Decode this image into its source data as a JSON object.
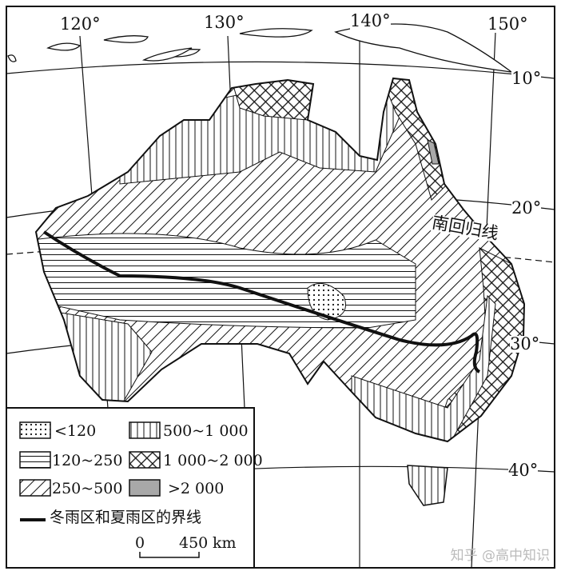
{
  "map": {
    "longitudes": [
      "120°",
      "130°",
      "140°",
      "150°"
    ],
    "latitudes": [
      "10°",
      "20°",
      "30°",
      "40°"
    ],
    "tropic_label": "南回归线"
  },
  "legend": {
    "items": [
      {
        "pattern": "dots",
        "label": "<120"
      },
      {
        "pattern": "horizontal-lines",
        "label": "120~250"
      },
      {
        "pattern": "diagonal-lines",
        "label": "250~500"
      },
      {
        "pattern": "vertical-lines",
        "label": "500~1 000"
      },
      {
        "pattern": "crosshatch",
        "label": "1 000~2 000"
      },
      {
        "pattern": "gray-fill",
        "label": ">2 000"
      }
    ],
    "boundary_label": "冬雨区和夏雨区的界线",
    "scale": {
      "zero": "0",
      "value": "450",
      "unit": "km"
    }
  },
  "watermark": "知乎 @高中知识",
  "colors": {
    "ink": "#111111",
    "gray": "#a8a8a8"
  }
}
